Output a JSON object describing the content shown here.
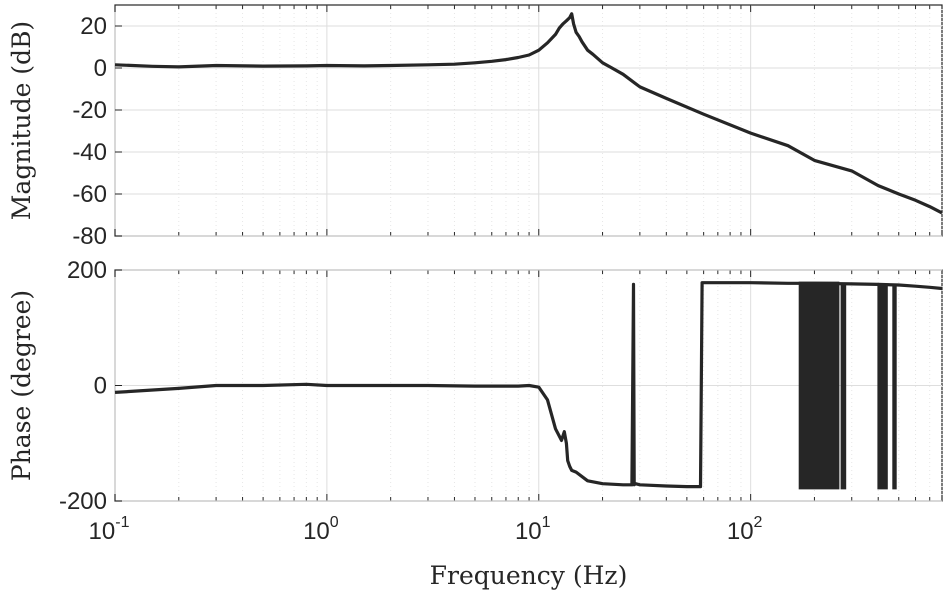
{
  "chart_data": [
    {
      "type": "line",
      "xscale": "log",
      "xlim": [
        0.1,
        800
      ],
      "ylabel": "Magnitude (dB)",
      "ylim": [
        -80,
        30
      ],
      "yticks": [
        20,
        0,
        -20,
        -40,
        -60,
        -80
      ],
      "yticklabels": [
        "20",
        "0",
        "-20",
        "-40",
        "-60",
        "-80"
      ],
      "grid": true,
      "series": [
        {
          "x": [
            0.1,
            0.15,
            0.2,
            0.3,
            0.5,
            0.8,
            1,
            1.5,
            2,
            3,
            4,
            5,
            6,
            7,
            8,
            9,
            10,
            11,
            12,
            12.5,
            13,
            13.5,
            14,
            14.3,
            14.6,
            15,
            15.5,
            16,
            17,
            18,
            20,
            22,
            25,
            30,
            40,
            60,
            100,
            150,
            200,
            300,
            400,
            500,
            600,
            700,
            800
          ],
          "y": [
            1.5,
            0.8,
            0.5,
            1.2,
            0.9,
            1.0,
            1.2,
            1.0,
            1.2,
            1.5,
            1.8,
            2.5,
            3.2,
            4.0,
            5.0,
            6.2,
            8.5,
            12,
            16,
            19,
            21,
            22.5,
            24,
            25.8,
            21,
            17,
            15,
            12.5,
            8.5,
            6.5,
            2.5,
            0.2,
            -3,
            -9,
            -14.5,
            -22,
            -31,
            -37,
            -44,
            -49,
            -56,
            -60,
            -63,
            -66,
            -69
          ]
        }
      ]
    },
    {
      "type": "line",
      "xscale": "log",
      "xlim": [
        0.1,
        800
      ],
      "xlabel": "Frequency (Hz)",
      "xticks": [
        0.1,
        1,
        10,
        100
      ],
      "xticklabels": [
        {
          "base": "10",
          "exp": "-1"
        },
        {
          "base": "10",
          "exp": "0"
        },
        {
          "base": "10",
          "exp": "1"
        },
        {
          "base": "10",
          "exp": "2"
        }
      ],
      "ylabel": "Phase (degree)",
      "ylim": [
        -200,
        200
      ],
      "yticks": [
        200,
        0,
        -200
      ],
      "yticklabels": [
        "200",
        "0",
        "-200"
      ],
      "grid": true,
      "series": [
        {
          "x": [
            0.1,
            0.2,
            0.3,
            0.5,
            0.8,
            1,
            2,
            3,
            5,
            8,
            9,
            10,
            11,
            12,
            12.8,
            13.2,
            13.5,
            13.7,
            14,
            14.3,
            15,
            17,
            20,
            25,
            27.5,
            28.0,
            28.2,
            28.6,
            30,
            40,
            50,
            58,
            59,
            60,
            61,
            80,
            100,
            150,
            200,
            300,
            400,
            500,
            600,
            700,
            800
          ],
          "y": [
            -12,
            -5,
            0,
            0,
            2,
            0,
            0,
            0,
            -1,
            -1,
            0,
            -3,
            -25,
            -75,
            -95,
            -80,
            -100,
            -130,
            -140,
            -147,
            -150,
            -165,
            -170,
            -172,
            -172,
            175,
            -172,
            -170,
            -172,
            -174,
            -175,
            -175,
            178,
            178,
            178,
            178,
            178,
            177,
            177,
            176,
            175,
            174,
            172,
            170,
            168
          ]
        }
      ],
      "wrap_bands": [
        {
          "x": [
            170,
            260
          ],
          "y": [
            -180,
            180
          ]
        },
        {
          "x": [
            268,
            280
          ],
          "y": [
            -180,
            175
          ]
        },
        {
          "x": [
            400,
            440
          ],
          "y": [
            -180,
            175
          ]
        },
        {
          "x": [
            470,
            485
          ],
          "y": [
            -180,
            175
          ]
        }
      ]
    }
  ]
}
